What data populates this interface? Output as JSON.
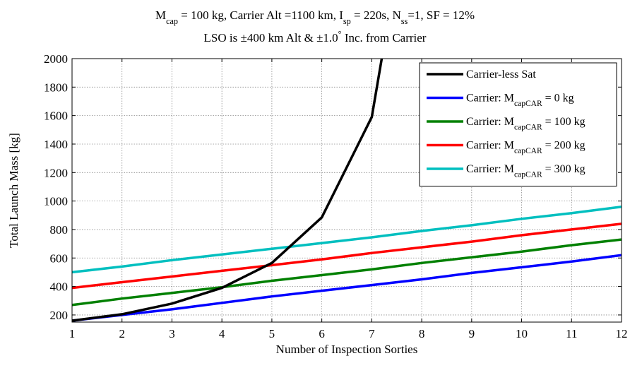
{
  "chart_data": {
    "type": "line",
    "title_lines": [
      [
        {
          "t": "M"
        },
        {
          "t": "cap",
          "sub": true
        },
        {
          "t": " = 100 kg, Carrier Alt =1100 km, I"
        },
        {
          "t": "sp",
          "sub": true
        },
        {
          "t": " = 220s, N"
        },
        {
          "t": "ss",
          "sub": true
        },
        {
          "t": "=1, SF = 12%"
        }
      ],
      [
        {
          "t": "LSO is ±400 km Alt & ±1.0"
        },
        {
          "t": "°",
          "sup": true
        },
        {
          "t": " Inc. from Carrier"
        }
      ]
    ],
    "xlabel": "Number of Inspection Sorties",
    "ylabel": "Total Launch Mass [kg]",
    "xlim": [
      1,
      12
    ],
    "ylim": [
      150,
      2000
    ],
    "xticks": [
      1,
      2,
      3,
      4,
      5,
      6,
      7,
      8,
      9,
      10,
      11,
      12
    ],
    "yticks": [
      200,
      400,
      600,
      800,
      1000,
      1200,
      1400,
      1600,
      1800,
      2000
    ],
    "grid": true,
    "legend_position": "top-right",
    "series": [
      {
        "label_parts": [
          {
            "t": "Carrier-less Sat"
          }
        ],
        "color": "#000000",
        "x": [
          1,
          2,
          3,
          4,
          5,
          6,
          7,
          7.2
        ],
        "y": [
          160,
          205,
          280,
          390,
          565,
          885,
          1590,
          2000
        ]
      },
      {
        "label_parts": [
          {
            "t": "Carrier: M"
          },
          {
            "t": "capCAR",
            "sub": true
          },
          {
            "t": " = 0 kg"
          }
        ],
        "color": "#0000ff",
        "x": [
          1,
          2,
          3,
          4,
          5,
          6,
          7,
          8,
          9,
          10,
          11,
          12
        ],
        "y": [
          160,
          200,
          240,
          285,
          330,
          370,
          410,
          450,
          495,
          535,
          575,
          620
        ]
      },
      {
        "label_parts": [
          {
            "t": "Carrier: M"
          },
          {
            "t": "capCAR",
            "sub": true
          },
          {
            "t": " = 100 kg"
          }
        ],
        "color": "#008000",
        "x": [
          1,
          2,
          3,
          4,
          5,
          6,
          7,
          8,
          9,
          10,
          11,
          12
        ],
        "y": [
          270,
          315,
          355,
          395,
          440,
          480,
          520,
          565,
          605,
          645,
          690,
          730
        ]
      },
      {
        "label_parts": [
          {
            "t": "Carrier: M"
          },
          {
            "t": "capCAR",
            "sub": true
          },
          {
            "t": " = 200 kg"
          }
        ],
        "color": "#ff0000",
        "x": [
          1,
          2,
          3,
          4,
          5,
          6,
          7,
          8,
          9,
          10,
          11,
          12
        ],
        "y": [
          390,
          430,
          470,
          510,
          550,
          590,
          635,
          675,
          715,
          760,
          800,
          840
        ]
      },
      {
        "label_parts": [
          {
            "t": "Carrier: M"
          },
          {
            "t": "capCAR",
            "sub": true
          },
          {
            "t": " = 300 kg"
          }
        ],
        "color": "#00bfbf",
        "x": [
          1,
          2,
          3,
          4,
          5,
          6,
          7,
          8,
          9,
          10,
          11,
          12
        ],
        "y": [
          500,
          540,
          585,
          625,
          665,
          705,
          745,
          790,
          830,
          875,
          915,
          960
        ]
      }
    ]
  }
}
